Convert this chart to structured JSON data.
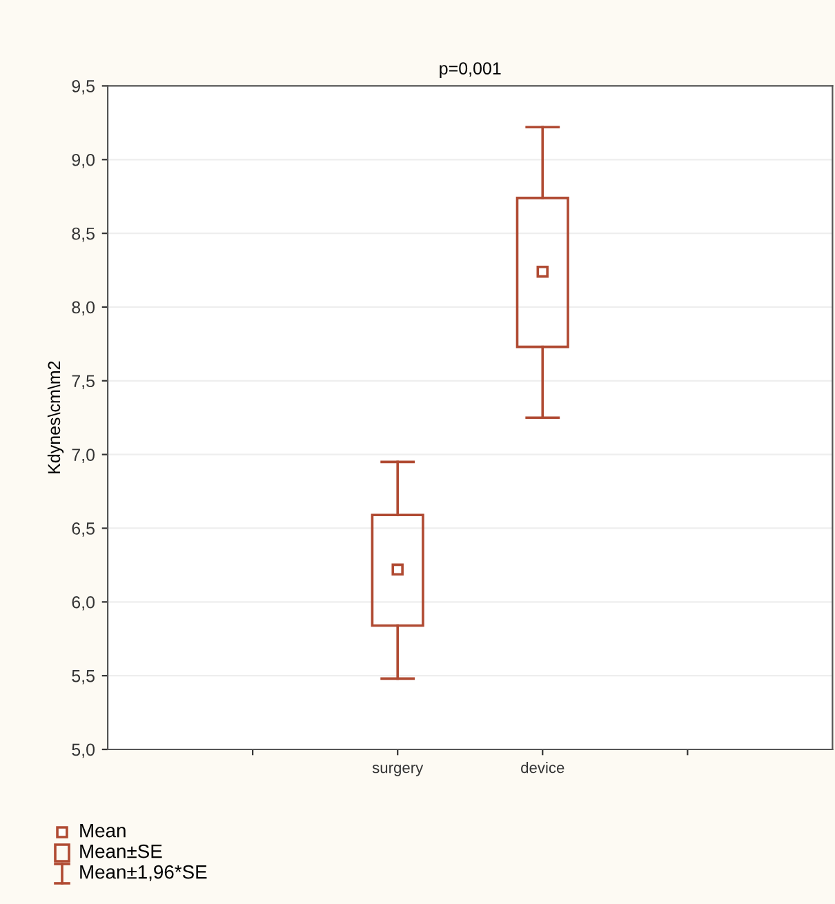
{
  "chart_data": {
    "type": "box",
    "title": "p=0,001",
    "ylabel": "Kdynes\\cm\\m2",
    "categories": [
      null,
      "surgery",
      "device",
      null
    ],
    "boxes": [
      null,
      {
        "low": 5.48,
        "q1": 5.84,
        "median": 6.22,
        "q3": 6.59,
        "high": 6.95
      },
      {
        "low": 7.25,
        "q1": 7.73,
        "median": 8.24,
        "q3": 8.74,
        "high": 9.22
      },
      null
    ],
    "color": "#b04a32",
    "ylim": [
      5.0,
      9.5
    ],
    "yticks": [
      {
        "value": 5.0,
        "label": "5,0"
      },
      {
        "value": 5.5,
        "label": "5,5"
      },
      {
        "value": 6.0,
        "label": "6,0"
      },
      {
        "value": 6.5,
        "label": "6,5"
      },
      {
        "value": 7.0,
        "label": "7,0"
      },
      {
        "value": 7.5,
        "label": "7,5"
      },
      {
        "value": 8.0,
        "label": "8,0"
      },
      {
        "value": 8.5,
        "label": "8,5"
      },
      {
        "value": 9.0,
        "label": "9,0"
      },
      {
        "value": 9.5,
        "label": "9,5"
      }
    ],
    "grid": "y",
    "annotations": [
      "Mean",
      "Mean±SE",
      "Mean±1,96*SE"
    ]
  }
}
